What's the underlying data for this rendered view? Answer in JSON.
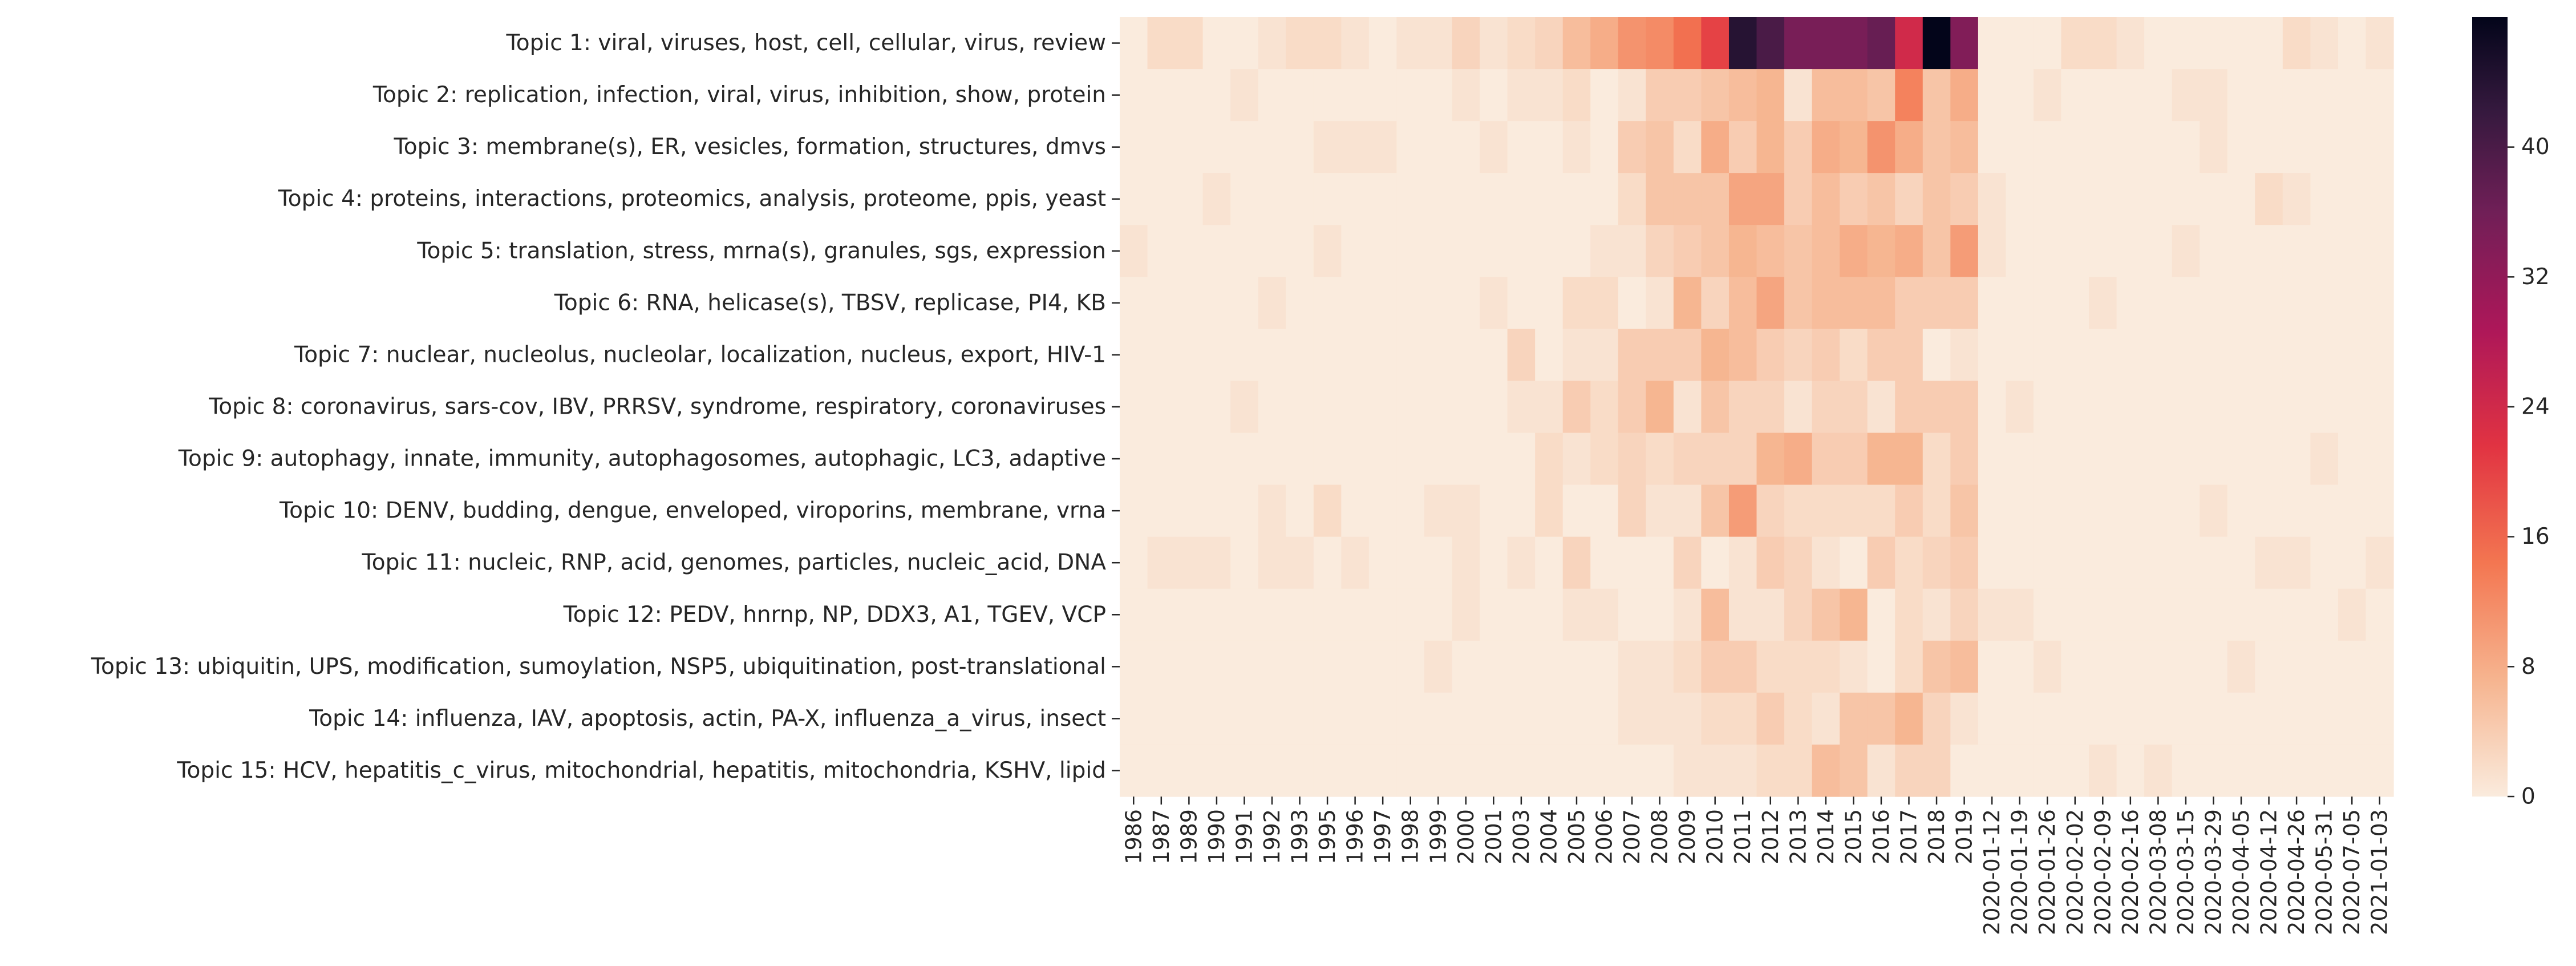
{
  "chart_data": {
    "type": "heatmap",
    "title": "",
    "xlabel": "",
    "ylabel": "",
    "colormap": "rocket_r",
    "x": [
      "1986",
      "1987",
      "1989",
      "1990",
      "1991",
      "1992",
      "1993",
      "1995",
      "1996",
      "1997",
      "1998",
      "1999",
      "2000",
      "2001",
      "2003",
      "2004",
      "2005",
      "2006",
      "2007",
      "2008",
      "2009",
      "2010",
      "2011",
      "2012",
      "2013",
      "2014",
      "2015",
      "2016",
      "2017",
      "2018",
      "2019",
      "2020-01-12",
      "2020-01-19",
      "2020-01-26",
      "2020-02-02",
      "2020-02-09",
      "2020-02-16",
      "2020-03-08",
      "2020-03-15",
      "2020-03-29",
      "2020-04-05",
      "2020-04-12",
      "2020-04-26",
      "2020-05-31",
      "2020-07-05",
      "2021-01-03"
    ],
    "y": [
      "Topic 1: viral, viruses, host, cell, cellular, virus, review",
      "Topic 2: replication, infection, viral, virus, inhibition, show, protein",
      "Topic 3: membrane(s), ER, vesicles, formation, structures, dmvs",
      "Topic 4: proteins, interactions, proteomics, analysis, proteome, ppis, yeast",
      "Topic 5: translation, stress, mrna(s), granules, sgs, expression",
      "Topic 6: RNA, helicase(s), TBSV, replicase, PI4, KB",
      "Topic 7: nuclear, nucleolus, nucleolar, localization, nucleus, export, HIV-1",
      "Topic 8: coronavirus, sars-cov, IBV, PRRSV, syndrome, respiratory, coronaviruses",
      "Topic 9: autophagy, innate, immunity, autophagosomes, autophagic, LC3, adaptive",
      "Topic 10: DENV, budding, dengue, enveloped, viroporins, membrane, vrna",
      "Topic 11: nucleic, RNP, acid, genomes, particles, nucleic_acid, DNA",
      "Topic 12: PEDV, hnrnp, NP, DDX3, A1, TGEV, VCP",
      "Topic 13: ubiquitin, UPS, modification, sumoylation, NSP5, ubiquitination, post-translational",
      "Topic 14: influenza, IAV, apoptosis, actin, PA-X, influenza_a_virus, insect",
      "Topic 15: HCV, hepatitis_c_virus, mitochondrial, hepatitis, mitochondria, KSHV, lipid"
    ],
    "values": [
      [
        0,
        2,
        2,
        0,
        0,
        1,
        2,
        2,
        1,
        0,
        1,
        1,
        3,
        1,
        2,
        3,
        6,
        8,
        11,
        12,
        15,
        20,
        44,
        40,
        35,
        35,
        35,
        37,
        24,
        48,
        34,
        0,
        0,
        0,
        2,
        2,
        1,
        0,
        0,
        0,
        0,
        0,
        2,
        1,
        0,
        1
      ],
      [
        0,
        0,
        0,
        0,
        1,
        0,
        0,
        0,
        0,
        0,
        0,
        0,
        1,
        0,
        1,
        1,
        2,
        0,
        1,
        4,
        4,
        5,
        6,
        7,
        1,
        6,
        6,
        5,
        13,
        5,
        8,
        0,
        0,
        1,
        0,
        0,
        0,
        0,
        1,
        1,
        0,
        0,
        0,
        0,
        0,
        0
      ],
      [
        0,
        0,
        0,
        0,
        0,
        0,
        0,
        1,
        1,
        1,
        0,
        0,
        0,
        1,
        0,
        0,
        1,
        0,
        4,
        5,
        2,
        8,
        4,
        7,
        4,
        8,
        7,
        11,
        8,
        5,
        6,
        0,
        0,
        0,
        0,
        0,
        0,
        0,
        0,
        1,
        0,
        0,
        0,
        0,
        0,
        0
      ],
      [
        0,
        0,
        0,
        1,
        0,
        0,
        0,
        0,
        0,
        0,
        0,
        0,
        0,
        0,
        0,
        0,
        0,
        0,
        2,
        5,
        5,
        5,
        9,
        9,
        4,
        6,
        4,
        5,
        3,
        5,
        4,
        1,
        0,
        0,
        0,
        0,
        0,
        0,
        0,
        0,
        0,
        2,
        1,
        0,
        0,
        0
      ],
      [
        1,
        0,
        0,
        0,
        0,
        0,
        0,
        1,
        0,
        0,
        0,
        0,
        0,
        0,
        0,
        0,
        0,
        1,
        1,
        3,
        4,
        5,
        7,
        6,
        5,
        6,
        8,
        7,
        8,
        5,
        10,
        1,
        0,
        0,
        0,
        0,
        0,
        0,
        1,
        0,
        0,
        0,
        0,
        0,
        0,
        0
      ],
      [
        0,
        0,
        0,
        0,
        0,
        1,
        0,
        0,
        0,
        0,
        0,
        0,
        0,
        1,
        0,
        0,
        2,
        2,
        0,
        1,
        7,
        3,
        6,
        9,
        5,
        6,
        6,
        6,
        4,
        4,
        4,
        0,
        0,
        0,
        0,
        1,
        0,
        0,
        0,
        0,
        0,
        0,
        0,
        0,
        0,
        0
      ],
      [
        0,
        0,
        0,
        0,
        0,
        0,
        0,
        0,
        0,
        0,
        0,
        0,
        0,
        0,
        3,
        0,
        1,
        1,
        4,
        4,
        4,
        7,
        6,
        4,
        3,
        4,
        2,
        4,
        4,
        0,
        1,
        0,
        0,
        0,
        0,
        0,
        0,
        0,
        0,
        0,
        0,
        0,
        0,
        0,
        0,
        0
      ],
      [
        0,
        0,
        0,
        0,
        1,
        0,
        0,
        0,
        0,
        0,
        0,
        0,
        0,
        0,
        1,
        1,
        4,
        2,
        4,
        7,
        1,
        5,
        3,
        3,
        1,
        3,
        3,
        1,
        4,
        4,
        4,
        0,
        1,
        0,
        0,
        0,
        0,
        0,
        0,
        0,
        0,
        0,
        0,
        0,
        0,
        0
      ],
      [
        0,
        0,
        0,
        0,
        0,
        0,
        0,
        0,
        0,
        0,
        0,
        0,
        0,
        0,
        0,
        2,
        1,
        2,
        3,
        2,
        3,
        3,
        3,
        7,
        8,
        4,
        4,
        7,
        7,
        2,
        4,
        0,
        0,
        0,
        0,
        0,
        0,
        0,
        0,
        0,
        0,
        0,
        0,
        1,
        0,
        0
      ],
      [
        0,
        0,
        0,
        0,
        0,
        1,
        0,
        2,
        0,
        0,
        0,
        1,
        1,
        0,
        0,
        2,
        0,
        0,
        3,
        1,
        1,
        5,
        10,
        3,
        2,
        2,
        2,
        2,
        4,
        2,
        5,
        0,
        0,
        0,
        0,
        0,
        0,
        0,
        0,
        1,
        0,
        0,
        0,
        0,
        0,
        0
      ],
      [
        0,
        1,
        1,
        1,
        0,
        1,
        1,
        0,
        1,
        0,
        0,
        0,
        1,
        0,
        1,
        0,
        3,
        0,
        0,
        0,
        3,
        0,
        1,
        4,
        3,
        1,
        0,
        4,
        2,
        3,
        4,
        0,
        0,
        0,
        0,
        0,
        0,
        0,
        0,
        0,
        0,
        1,
        1,
        0,
        0,
        1
      ],
      [
        0,
        0,
        0,
        0,
        0,
        0,
        0,
        0,
        0,
        0,
        0,
        0,
        1,
        0,
        0,
        0,
        1,
        1,
        0,
        0,
        1,
        6,
        1,
        1,
        3,
        5,
        7,
        0,
        2,
        1,
        3,
        1,
        1,
        0,
        0,
        0,
        0,
        0,
        0,
        0,
        0,
        0,
        0,
        0,
        1,
        0
      ],
      [
        0,
        0,
        0,
        0,
        0,
        0,
        0,
        0,
        0,
        0,
        0,
        1,
        0,
        0,
        0,
        0,
        0,
        0,
        1,
        1,
        2,
        4,
        4,
        2,
        2,
        2,
        1,
        0,
        2,
        5,
        6,
        0,
        0,
        1,
        0,
        0,
        0,
        0,
        0,
        0,
        1,
        0,
        0,
        0,
        0,
        0
      ],
      [
        0,
        0,
        0,
        0,
        0,
        0,
        0,
        0,
        0,
        0,
        0,
        0,
        0,
        0,
        0,
        0,
        0,
        0,
        1,
        1,
        1,
        2,
        2,
        4,
        2,
        1,
        5,
        5,
        7,
        3,
        1,
        0,
        0,
        0,
        0,
        0,
        0,
        0,
        0,
        0,
        0,
        0,
        0,
        0,
        0,
        0
      ],
      [
        0,
        0,
        0,
        0,
        0,
        0,
        0,
        0,
        0,
        0,
        0,
        0,
        0,
        0,
        0,
        0,
        0,
        0,
        0,
        0,
        1,
        1,
        1,
        2,
        2,
        6,
        5,
        1,
        3,
        3,
        0,
        0,
        0,
        0,
        0,
        1,
        0,
        1,
        0,
        0,
        0,
        0,
        0,
        0,
        0,
        0
      ]
    ],
    "colorbar": {
      "vmin": 0,
      "vmax": 48,
      "ticks": [
        0,
        8,
        16,
        24,
        32,
        40
      ]
    },
    "grid": false,
    "legend": "colorbar-right"
  }
}
